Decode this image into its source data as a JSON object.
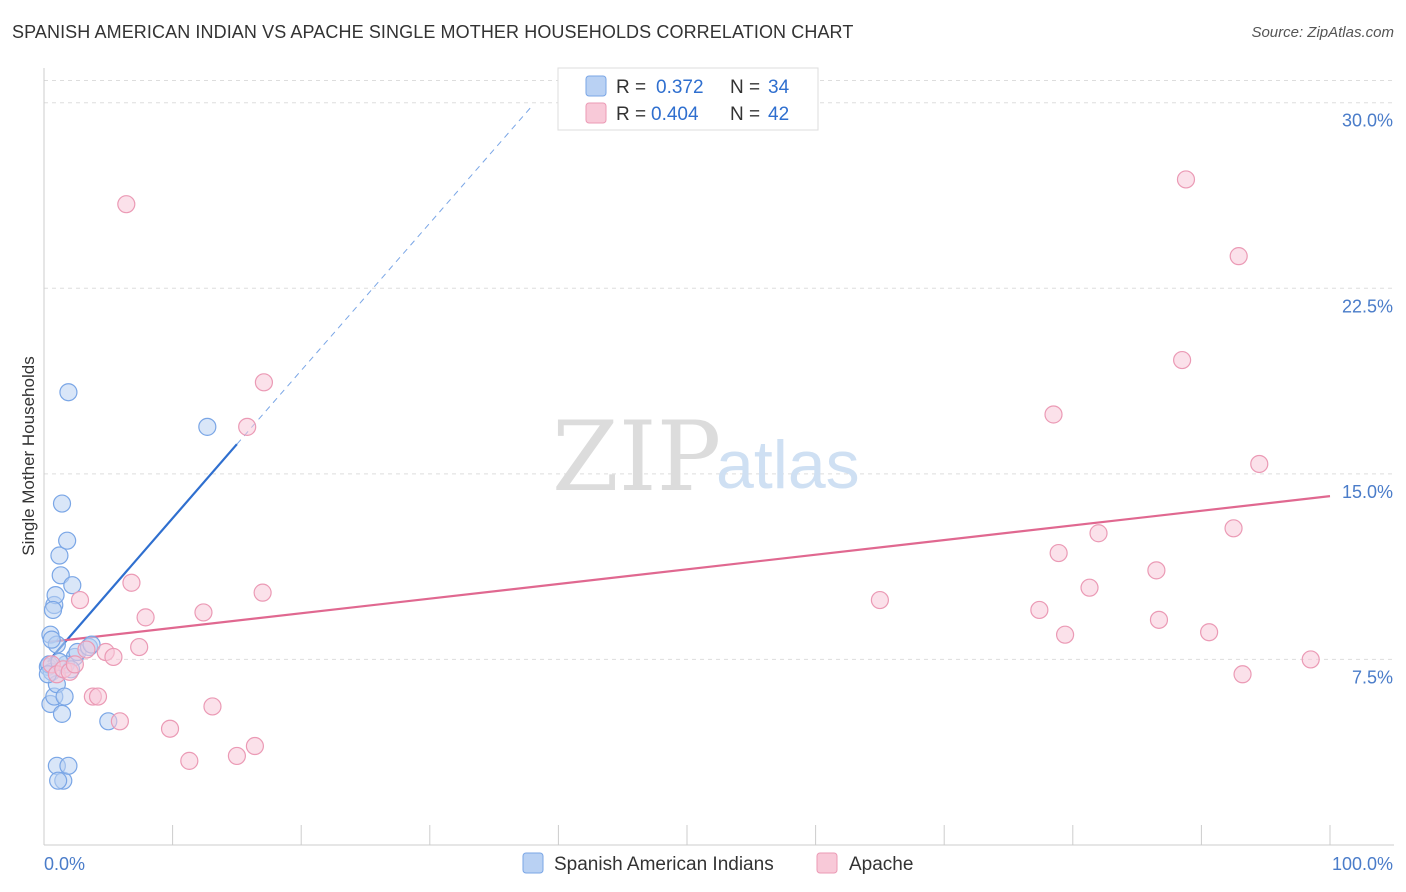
{
  "title": "SPANISH AMERICAN INDIAN VS APACHE SINGLE MOTHER HOUSEHOLDS CORRELATION CHART",
  "source": "Source: ZipAtlas.com",
  "watermark": {
    "zip": "ZIP",
    "atlas": "atlas"
  },
  "chart_data": {
    "type": "scatter",
    "title": "SPANISH AMERICAN INDIAN VS APACHE SINGLE MOTHER HOUSEHOLDS CORRELATION CHART",
    "xlabel": "",
    "ylabel": "Single Mother Households",
    "xlim": [
      0,
      100
    ],
    "ylim": [
      0,
      31
    ],
    "x_tick_labels": [
      "0.0%",
      "100.0%"
    ],
    "y_ticks": [
      7.5,
      15.0,
      22.5,
      30.0
    ],
    "y_tick_labels": [
      "7.5%",
      "15.0%",
      "22.5%",
      "30.0%"
    ],
    "grid": true,
    "legend_position": "top-center",
    "series": [
      {
        "name": "Spanish American Indians",
        "color": "#7aa6e6",
        "fill": "#b9d1f3",
        "line_color": "#2f6fcf",
        "R": "0.372",
        "N": "34",
        "trend": {
          "x0": 0.3,
          "y0": 7.4,
          "x1": 15,
          "y1": 16.2,
          "dash_x1": 38,
          "dash_y1": 29.9
        },
        "points": [
          [
            0.3,
            7.2
          ],
          [
            0.5,
            8.5
          ],
          [
            0.8,
            9.7
          ],
          [
            0.6,
            7.0
          ],
          [
            1.0,
            8.1
          ],
          [
            1.2,
            11.7
          ],
          [
            1.3,
            10.9
          ],
          [
            1.4,
            13.8
          ],
          [
            1.8,
            12.3
          ],
          [
            1.9,
            18.3
          ],
          [
            2.2,
            10.5
          ],
          [
            0.9,
            10.1
          ],
          [
            0.7,
            9.5
          ],
          [
            0.4,
            7.3
          ],
          [
            0.5,
            5.7
          ],
          [
            0.8,
            6.0
          ],
          [
            1.0,
            6.5
          ],
          [
            1.6,
            6.0
          ],
          [
            1.4,
            5.3
          ],
          [
            1.0,
            3.2
          ],
          [
            1.5,
            2.6
          ],
          [
            1.1,
            2.6
          ],
          [
            1.9,
            3.2
          ],
          [
            2.4,
            7.6
          ],
          [
            2.6,
            7.8
          ],
          [
            3.5,
            8.0
          ],
          [
            1.7,
            7.3
          ],
          [
            0.6,
            8.3
          ],
          [
            2.1,
            7.1
          ],
          [
            3.7,
            8.1
          ],
          [
            12.7,
            16.9
          ],
          [
            5.0,
            5.0
          ],
          [
            0.3,
            6.9
          ],
          [
            1.2,
            7.4
          ]
        ]
      },
      {
        "name": "Apache",
        "color": "#eb9ab5",
        "fill": "#f8c9d8",
        "line_color": "#e06890",
        "R": "0.404",
        "N": "42",
        "trend": {
          "x0": 0.3,
          "y0": 8.2,
          "x1": 100,
          "y1": 14.1
        },
        "points": [
          [
            0.6,
            7.3
          ],
          [
            1.0,
            6.9
          ],
          [
            1.5,
            7.1
          ],
          [
            2.0,
            7.0
          ],
          [
            2.4,
            7.3
          ],
          [
            2.8,
            9.9
          ],
          [
            3.3,
            7.9
          ],
          [
            3.8,
            6.0
          ],
          [
            4.2,
            6.0
          ],
          [
            4.8,
            7.8
          ],
          [
            5.4,
            7.6
          ],
          [
            5.9,
            5.0
          ],
          [
            6.4,
            25.9
          ],
          [
            6.8,
            10.6
          ],
          [
            7.4,
            8.0
          ],
          [
            7.9,
            9.2
          ],
          [
            9.8,
            4.7
          ],
          [
            11.3,
            3.4
          ],
          [
            12.4,
            9.4
          ],
          [
            13.1,
            5.6
          ],
          [
            15.0,
            3.6
          ],
          [
            15.8,
            16.9
          ],
          [
            16.4,
            4.0
          ],
          [
            17.0,
            10.2
          ],
          [
            17.1,
            18.7
          ],
          [
            65.0,
            9.9
          ],
          [
            77.4,
            9.5
          ],
          [
            78.5,
            17.4
          ],
          [
            78.9,
            11.8
          ],
          [
            79.4,
            8.5
          ],
          [
            81.3,
            10.4
          ],
          [
            82.0,
            12.6
          ],
          [
            86.5,
            11.1
          ],
          [
            86.7,
            9.1
          ],
          [
            88.5,
            19.6
          ],
          [
            88.8,
            26.9
          ],
          [
            90.6,
            8.6
          ],
          [
            92.5,
            12.8
          ],
          [
            92.9,
            23.8
          ],
          [
            93.2,
            6.9
          ],
          [
            94.5,
            15.4
          ],
          [
            98.5,
            7.5
          ]
        ]
      }
    ]
  },
  "legend": {
    "r_label": "R =",
    "n_label": "N ="
  }
}
